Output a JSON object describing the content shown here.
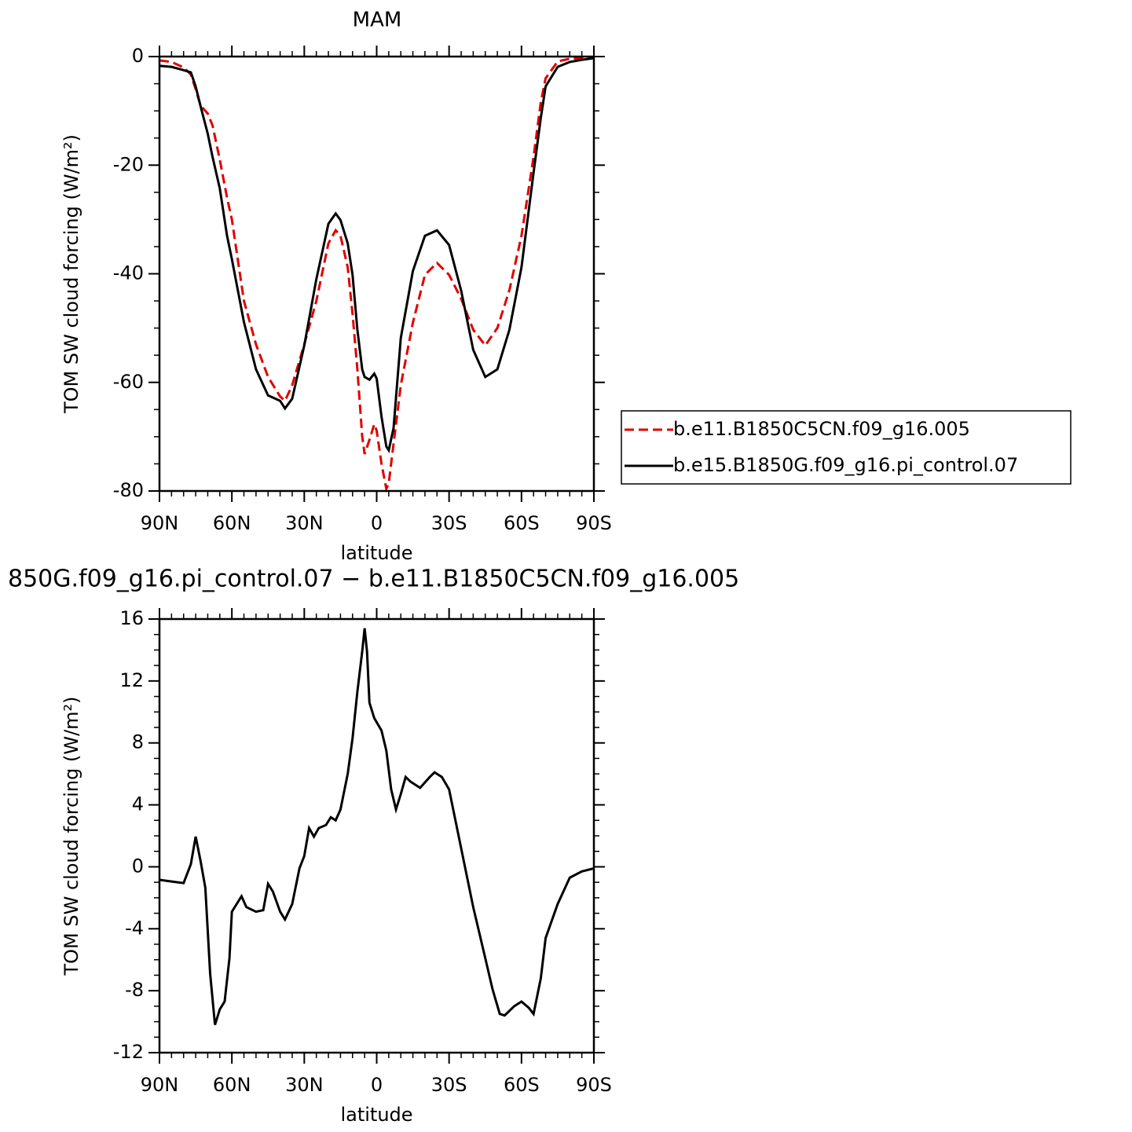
{
  "chart_data": [
    {
      "type": "line",
      "title": "MAM",
      "xlabel": "latitude",
      "ylabel": "TOM SW cloud forcing (W/m²)",
      "x": [
        90,
        85,
        80,
        77,
        75,
        73,
        70,
        68,
        65,
        62,
        60,
        55,
        50,
        45,
        40,
        38,
        35,
        30,
        25,
        20,
        17,
        15,
        12,
        10,
        8,
        6,
        5,
        3,
        1,
        0,
        -2,
        -4,
        -5,
        -7,
        -10,
        -15,
        -20,
        -25,
        -30,
        -35,
        -40,
        -45,
        -50,
        -55,
        -60,
        -65,
        -68,
        -70,
        -75,
        -80,
        -85,
        -90
      ],
      "series": [
        {
          "name": "b.e11.B1850C5CN.f09_g16.005",
          "color": "#e00000",
          "dashed": true,
          "values": [
            -0.7,
            -1,
            -2,
            -3.3,
            -6,
            -9,
            -10.5,
            -12.7,
            -19,
            -26,
            -30,
            -45,
            -53,
            -59,
            -62.6,
            -63.4,
            -60.5,
            -53,
            -45,
            -34.4,
            -32,
            -33,
            -38.8,
            -47.4,
            -57.6,
            -69.9,
            -73.2,
            -70.6,
            -67.7,
            -68.9,
            -75,
            -79.6,
            -78.6,
            -71.3,
            -60.5,
            -49,
            -40.2,
            -38,
            -40.2,
            -44.6,
            -50.3,
            -53.2,
            -50,
            -43,
            -33,
            -18.5,
            -8.4,
            -4,
            -0.9,
            -0.4,
            -0.3,
            -0.1
          ]
        },
        {
          "name": "b.e15.B1850G.f09_g16.pi_control.07",
          "color": "#000000",
          "dashed": false,
          "values": [
            -1.7,
            -1.9,
            -2.5,
            -2.9,
            -5.5,
            -9.1,
            -14.2,
            -18.5,
            -24.3,
            -33,
            -37.3,
            -48.9,
            -57.6,
            -62.4,
            -63.4,
            -64.8,
            -63,
            -53.2,
            -41,
            -30.8,
            -28.9,
            -30.1,
            -34.4,
            -40.2,
            -50.3,
            -57.6,
            -59,
            -59.5,
            -58.4,
            -59.3,
            -66.3,
            -71.8,
            -72.5,
            -68.4,
            -51.8,
            -39.5,
            -33,
            -32,
            -34.7,
            -43.1,
            -54,
            -59,
            -57.6,
            -50.3,
            -38.8,
            -21.4,
            -11.3,
            -5.5,
            -1.9,
            -1,
            -0.6,
            -0.3
          ]
        }
      ],
      "xlim": [
        90,
        -90
      ],
      "xticks": [
        {
          "value": 90,
          "label": "90N"
        },
        {
          "value": 60,
          "label": "60N"
        },
        {
          "value": 30,
          "label": "30N"
        },
        0,
        {
          "value": -30,
          "label": "30S"
        },
        {
          "value": -60,
          "label": "60S"
        },
        {
          "value": -90,
          "label": "90S"
        }
      ],
      "ylim": [
        -80,
        0
      ],
      "yticks": [
        0,
        -20,
        -40,
        -60,
        -80
      ],
      "legend": "right"
    },
    {
      "type": "line",
      "title": "850G.f09_g16.pi_control.07 − b.e11.B1850C5CN.f09_g16.005",
      "xlabel": "latitude",
      "ylabel": "TOM SW cloud forcing (W/m²)",
      "x": [
        90,
        85,
        80,
        77,
        75,
        73,
        71,
        69,
        67,
        65,
        63,
        61,
        60,
        58,
        56,
        54,
        50,
        47,
        45,
        43,
        40,
        38,
        35,
        32,
        30,
        28,
        26,
        24,
        21,
        19,
        17,
        15,
        12,
        10,
        8,
        6,
        5,
        4,
        3,
        1,
        -2,
        -4,
        -6,
        -8,
        -10,
        -12,
        -14,
        -18,
        -22,
        -24,
        -27,
        -30,
        -35,
        -40,
        -45,
        -48,
        -51,
        -53,
        -57,
        -60,
        -63,
        -65,
        -68,
        -70,
        -75,
        -80,
        -85,
        -90
      ],
      "series": [
        {
          "color": "#000000",
          "dashed": false,
          "values": [
            -0.84,
            -0.95,
            -1.05,
            0.17,
            1.95,
            0.4,
            -1.35,
            -6.9,
            -10.2,
            -9.2,
            -8.7,
            -5.9,
            -2.9,
            -2.4,
            -1.9,
            -2.6,
            -2.9,
            -2.8,
            -1.1,
            -1.6,
            -2.9,
            -3.4,
            -2.4,
            -0.1,
            0.7,
            2.5,
            1.95,
            2.5,
            2.7,
            3.2,
            3,
            3.7,
            6,
            8.3,
            11.3,
            13.9,
            15.4,
            13.9,
            10.6,
            9.6,
            8.8,
            7.5,
            5,
            3.7,
            4.7,
            5.8,
            5.5,
            5.1,
            5.8,
            6.1,
            5.8,
            5,
            1.2,
            -2.6,
            -5.9,
            -7.9,
            -9.5,
            -9.6,
            -9,
            -8.7,
            -9.1,
            -9.5,
            -7.2,
            -4.6,
            -2.4,
            -0.7,
            -0.3,
            -0.1
          ]
        }
      ],
      "xlim": [
        90,
        -90
      ],
      "xticks": [
        {
          "value": 90,
          "label": "90N"
        },
        {
          "value": 60,
          "label": "60N"
        },
        {
          "value": 30,
          "label": "30N"
        },
        0,
        {
          "value": -30,
          "label": "30S"
        },
        {
          "value": -60,
          "label": "60S"
        },
        {
          "value": -90,
          "label": "90S"
        }
      ],
      "ylim": [
        -12,
        16
      ],
      "yticks": [
        16,
        12,
        8,
        4,
        0,
        -4,
        -8,
        -12
      ]
    }
  ]
}
